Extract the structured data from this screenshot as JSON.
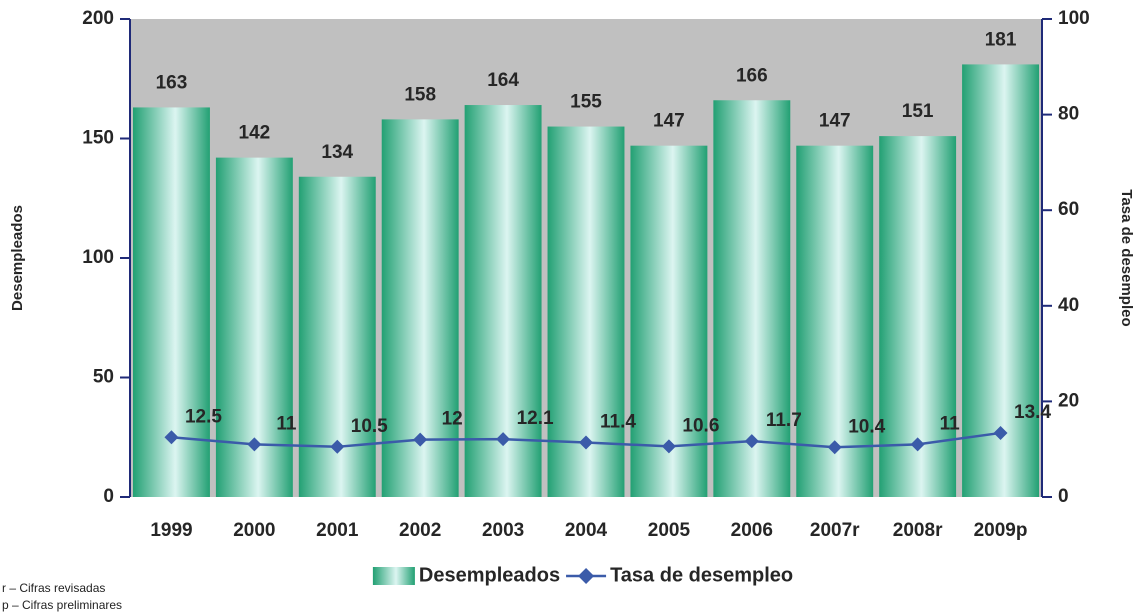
{
  "chart_data": {
    "type": "combo",
    "categories": [
      "1999",
      "2000",
      "2001",
      "2002",
      "2003",
      "2004",
      "2005",
      "2006",
      "2007r",
      "2008r",
      "2009p"
    ],
    "series": [
      {
        "name": "Desempleados",
        "type": "bar",
        "color": "#22a073",
        "values": [
          163,
          142,
          134,
          158,
          164,
          155,
          147,
          166,
          147,
          151,
          181
        ]
      },
      {
        "name": "Tasa de desempleo",
        "type": "line",
        "axis": "y2",
        "color": "#3b5ba9",
        "values": [
          12.5,
          11,
          10.5,
          12,
          12.1,
          11.4,
          10.6,
          11.7,
          10.4,
          11,
          13.4
        ]
      }
    ],
    "ylabel": "Desempleados",
    "y2label": "Tasa de desempleo",
    "ylim": [
      0,
      200
    ],
    "yticks": [
      0,
      50,
      100,
      150,
      200
    ],
    "y2lim": [
      0,
      100
    ],
    "y2ticks": [
      0,
      20,
      40,
      60,
      80,
      100
    ],
    "legend": "bottom"
  },
  "notes": [
    "r – Cifras revisadas",
    "p – Cifras preliminares"
  ]
}
